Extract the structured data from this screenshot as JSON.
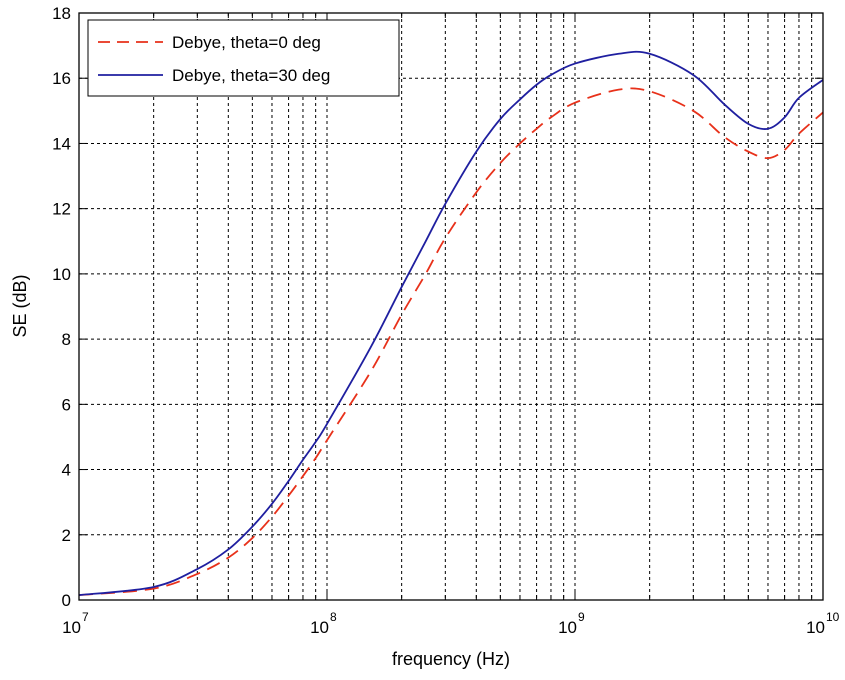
{
  "chart_data": {
    "type": "line",
    "title": "",
    "xlabel": "frequency (Hz)",
    "ylabel": "SE (dB)",
    "xscale": "log",
    "xlim": [
      10000000,
      10000000000
    ],
    "ylim": [
      0,
      18
    ],
    "grid": true,
    "legend_position": "top-left",
    "x_ticks": [
      {
        "value": 10000000,
        "base": "10",
        "exp": "7"
      },
      {
        "value": 100000000,
        "base": "10",
        "exp": "8"
      },
      {
        "value": 1000000000,
        "base": "10",
        "exp": "9"
      },
      {
        "value": 10000000000,
        "base": "10",
        "exp": "10"
      }
    ],
    "y_ticks": [
      "0",
      "2",
      "4",
      "6",
      "8",
      "10",
      "12",
      "14",
      "16",
      "18"
    ],
    "series": [
      {
        "name": "Debye, theta=0 deg",
        "color": "#e8311a",
        "style": "dashed",
        "x": [
          10000000,
          20000000,
          30000000,
          40000000,
          50000000,
          60000000,
          70000000,
          80000000,
          90000000,
          100000000,
          150000000,
          200000000,
          250000000,
          300000000,
          400000000,
          500000000,
          600000000,
          700000000,
          800000000,
          1000000000,
          1500000000,
          2000000000,
          3000000000,
          4000000000,
          5000000000,
          6000000000,
          7000000000,
          8000000000,
          10000000000
        ],
        "y": [
          0.15,
          0.35,
          0.8,
          1.3,
          1.9,
          2.55,
          3.2,
          3.8,
          4.35,
          4.9,
          7.0,
          8.75,
          10.0,
          11.1,
          12.5,
          13.4,
          14.0,
          14.45,
          14.8,
          15.25,
          15.65,
          15.6,
          15.0,
          14.2,
          13.75,
          13.55,
          13.8,
          14.3,
          14.95
        ]
      },
      {
        "name": "Debye, theta=30 deg",
        "color": "#1f1fa0",
        "style": "solid",
        "x": [
          10000000,
          20000000,
          30000000,
          40000000,
          50000000,
          60000000,
          70000000,
          80000000,
          90000000,
          100000000,
          150000000,
          200000000,
          250000000,
          300000000,
          400000000,
          500000000,
          600000000,
          700000000,
          800000000,
          1000000000,
          1500000000,
          2000000000,
          3000000000,
          4000000000,
          5000000000,
          6000000000,
          7000000000,
          8000000000,
          10000000000
        ],
        "y": [
          0.15,
          0.4,
          0.95,
          1.55,
          2.25,
          2.95,
          3.65,
          4.3,
          4.85,
          5.4,
          7.75,
          9.6,
          11.0,
          12.15,
          13.75,
          14.75,
          15.35,
          15.8,
          16.1,
          16.45,
          16.75,
          16.75,
          16.1,
          15.2,
          14.6,
          14.45,
          14.8,
          15.4,
          15.95
        ]
      }
    ]
  }
}
